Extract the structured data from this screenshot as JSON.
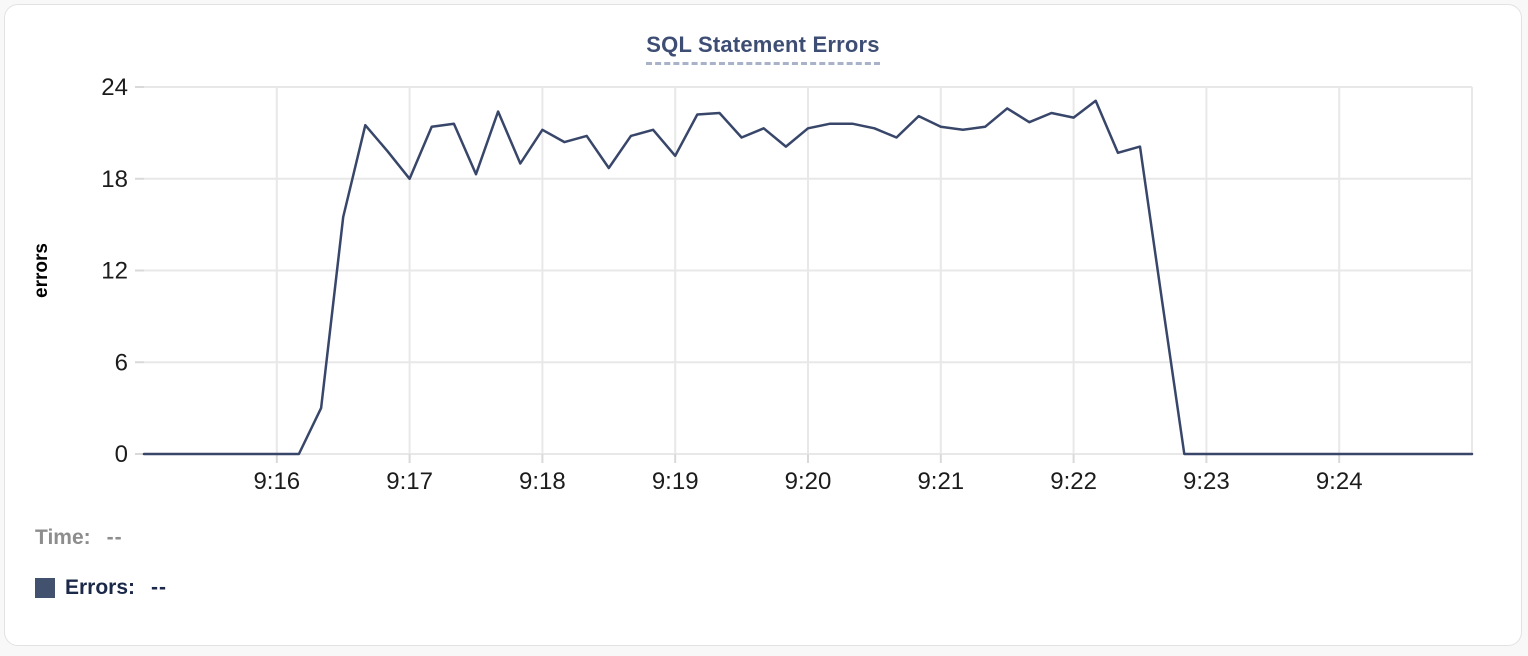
{
  "chart_data": {
    "type": "line",
    "title": "SQL Statement Errors",
    "ylabel": "errors",
    "ylim": [
      0,
      24
    ],
    "y_ticks": [
      0,
      6,
      12,
      18,
      24
    ],
    "x_domain_seconds": [
      0,
      600
    ],
    "x_start_time": "9:15",
    "x_end_time": "9:25",
    "x_gridlines_seconds": [
      60,
      120,
      180,
      240,
      300,
      360,
      420,
      480,
      540,
      600
    ],
    "x_ticks": [
      {
        "seconds": 60,
        "label": "9:16"
      },
      {
        "seconds": 120,
        "label": "9:17"
      },
      {
        "seconds": 180,
        "label": "9:18"
      },
      {
        "seconds": 240,
        "label": "9:19"
      },
      {
        "seconds": 300,
        "label": "9:20"
      },
      {
        "seconds": 360,
        "label": "9:21"
      },
      {
        "seconds": 420,
        "label": "9:22"
      },
      {
        "seconds": 480,
        "label": "9:23"
      },
      {
        "seconds": 540,
        "label": "9:24"
      }
    ],
    "grid": true,
    "legend_position": "bottom-left",
    "series": [
      {
        "name": "Errors",
        "color": "#38466a",
        "t_start_seconds": 0,
        "t_step_seconds": 10,
        "values": [
          0,
          0,
          0,
          0,
          0,
          0,
          0,
          0,
          3,
          15.5,
          21.5,
          19.8,
          18,
          21.4,
          21.6,
          18.3,
          22.4,
          19,
          21.2,
          20.4,
          20.8,
          18.7,
          20.8,
          21.2,
          19.5,
          22.2,
          22.3,
          20.7,
          21.3,
          20.1,
          21.3,
          21.6,
          21.6,
          21.3,
          20.7,
          22.1,
          21.4,
          21.2,
          21.4,
          22.6,
          21.7,
          22.3,
          22,
          23.1,
          19.7,
          20.1,
          10,
          0,
          0,
          0,
          0,
          0,
          0,
          0,
          0,
          0,
          0,
          0,
          0,
          0,
          0
        ]
      }
    ]
  },
  "readout": {
    "time_label": "Time:",
    "time_value": "--",
    "errors_label": "Errors:",
    "errors_value": "--"
  },
  "colors": {
    "title": "#3d4d73",
    "title_underline": "#a9b2c9",
    "line": "#38466a",
    "legend_swatch": "#42516e",
    "gridline": "#e8e8e8",
    "tick_mark": "#d9d9d9",
    "axis_text": "#1c1c1c",
    "axis_label": "#000000",
    "time_readout_gray": "#8d8d8d",
    "errors_readout_navy": "#1b2848"
  }
}
